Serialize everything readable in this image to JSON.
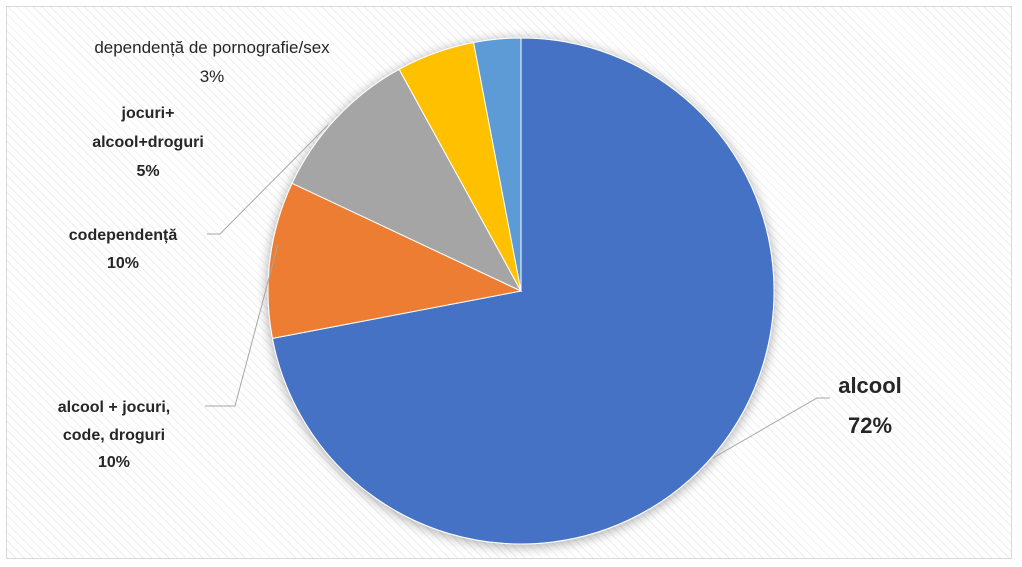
{
  "chart_data": {
    "type": "pie",
    "title": "",
    "slices": [
      {
        "label": "alcool",
        "percent_label": "72%",
        "value": 72,
        "color": "#4472C4"
      },
      {
        "label": "alcool + jocuri, code, droguri",
        "percent_label": "10%",
        "value": 10,
        "color": "#ED7D31"
      },
      {
        "label": "codependență",
        "percent_label": "10%",
        "value": 10,
        "color": "#A5A5A5"
      },
      {
        "label": "jocuri+ alcool+droguri",
        "percent_label": "5%",
        "value": 5,
        "color": "#FFC000"
      },
      {
        "label": "dependență de pornografie/sex",
        "percent_label": "3%",
        "value": 3,
        "color": "#5B9BD5"
      }
    ],
    "legend": "none",
    "data_labels": "outside with leader lines"
  },
  "labels": {
    "alcool": {
      "line1": "alcool",
      "pct": "72%"
    },
    "mixt": {
      "line1": "alcool + jocuri,",
      "line2": "code, droguri",
      "pct": "10%"
    },
    "codep": {
      "line1": "codependență",
      "pct": "10%"
    },
    "jocuri": {
      "line1": "jocuri+",
      "line2": "alcool+droguri",
      "pct": "5%"
    },
    "porno": {
      "line1": "dependență de pornografie/sex",
      "pct": "3%"
    }
  }
}
